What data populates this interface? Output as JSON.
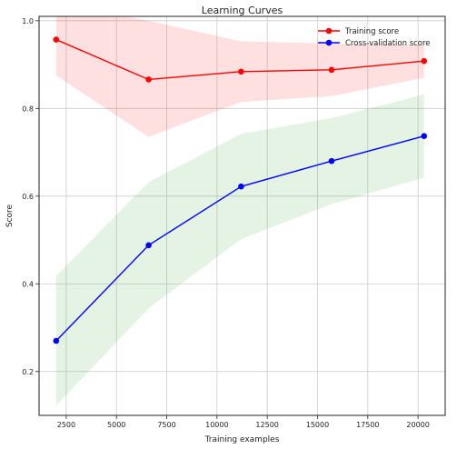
{
  "chart_data": {
    "type": "line",
    "title": "Learning Curves",
    "xlabel": "Training examples",
    "ylabel": "Score",
    "xlim": [
      1150,
      21350
    ],
    "ylim": [
      0.1,
      1.01
    ],
    "xticks": [
      2500,
      5000,
      7500,
      10000,
      12500,
      15000,
      17500,
      20000
    ],
    "yticks": [
      0.2,
      0.4,
      0.6,
      0.8,
      1.0
    ],
    "grid": true,
    "legend_position": "top-right",
    "x": [
      2000,
      6600,
      11200,
      15700,
      20300
    ],
    "series": [
      {
        "name": "Training score",
        "color": "#ff0000",
        "band_color": "#ff0000",
        "values": [
          0.957,
          0.866,
          0.884,
          0.888,
          0.908
        ],
        "upper": [
          1.04,
          1.0,
          0.953,
          0.948,
          0.945
        ],
        "lower": [
          0.875,
          0.735,
          0.815,
          0.828,
          0.87
        ]
      },
      {
        "name": "Cross-validation score",
        "color": "#0000ff",
        "band_color": "#2ca02c",
        "values": [
          0.27,
          0.488,
          0.622,
          0.68,
          0.737
        ],
        "upper": [
          0.418,
          0.632,
          0.742,
          0.778,
          0.832
        ],
        "lower": [
          0.122,
          0.344,
          0.502,
          0.582,
          0.642
        ]
      }
    ]
  }
}
